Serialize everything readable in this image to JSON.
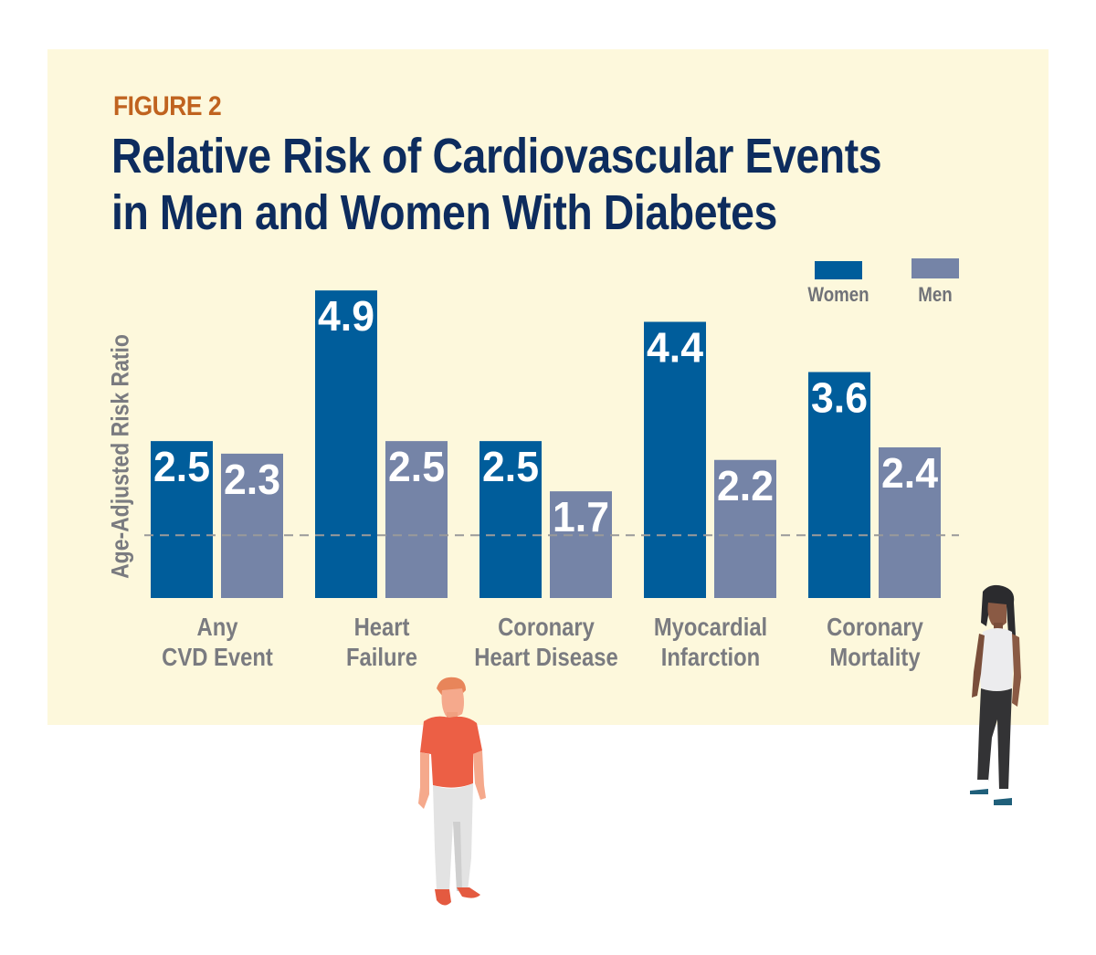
{
  "figure_label": "FIGURE 2",
  "title_line1": "Relative Risk of Cardiovascular Events",
  "title_line2": "in Men and Women With Diabetes",
  "colors": {
    "background_panel": "#fdf8dc",
    "women": "#005d9b",
    "men": "#7584a7",
    "figure_label": "#c0631f",
    "title": "#0d2c5e",
    "axis_text": "#7a7b80",
    "reference_line": "#9a9a9a"
  },
  "legend": [
    {
      "name": "Women",
      "color": "#005d9b"
    },
    {
      "name": "Men",
      "color": "#7584a7"
    }
  ],
  "illustrations": [
    {
      "name": "man-figure",
      "description": "standing man in orange t-shirt and light gray pants"
    },
    {
      "name": "woman-figure",
      "description": "standing woman in white tank top and dark pants"
    }
  ],
  "chart_data": {
    "type": "bar",
    "title": "Relative Risk of Cardiovascular Events in Men and Women With Diabetes",
    "xlabel": "",
    "ylabel": "Age-Adjusted Risk Ratio",
    "categories": [
      "Any\nCVD Event",
      "Heart\nFailure",
      "Coronary\nHeart Disease",
      "Myocardial\nInfarction",
      "Coronary\nMortality"
    ],
    "series": [
      {
        "name": "Women",
        "values": [
          2.5,
          4.9,
          2.5,
          4.4,
          3.6
        ],
        "labels": [
          "2.5",
          "4.9",
          "2.5",
          "4.4",
          "3.6"
        ]
      },
      {
        "name": "Men",
        "values": [
          2.3,
          2.5,
          1.7,
          2.2,
          2.4
        ],
        "labels": [
          "2.3",
          "2.5",
          "1.7",
          "2.2",
          "2.4"
        ]
      }
    ],
    "reference_line": 1.0,
    "ylim": [
      0,
      5
    ],
    "grid": false,
    "legend_position": "top-right",
    "data_labels": "inside-top"
  }
}
